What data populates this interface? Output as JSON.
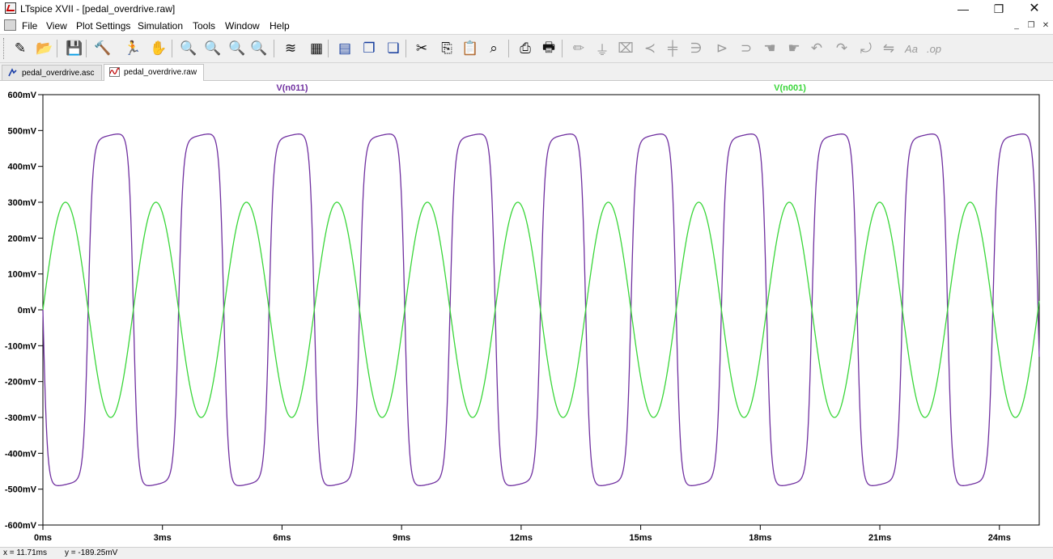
{
  "window": {
    "title": "LTspice XVII - [pedal_overdrive.raw]",
    "controls": {
      "minimize": "—",
      "maximize": "❐",
      "close": "✕"
    },
    "mdi_controls": {
      "minimize": "_",
      "restore": "❐",
      "close": "✕"
    }
  },
  "menu": [
    {
      "label": "File"
    },
    {
      "label": "View"
    },
    {
      "label": "Plot Settings"
    },
    {
      "label": "Simulation"
    },
    {
      "label": "Tools"
    },
    {
      "label": "Window"
    },
    {
      "label": "Help"
    }
  ],
  "toolbar": [
    {
      "icon": "new-schematic-icon",
      "glyph": "✎"
    },
    {
      "icon": "open-folder-icon",
      "glyph": "📂"
    },
    {
      "icon": "save-icon",
      "glyph": "💾"
    },
    {
      "icon": "control-panel-icon",
      "glyph": "🔨"
    },
    {
      "icon": "run-icon",
      "glyph": "🏃"
    },
    {
      "icon": "halt-icon",
      "glyph": "✋"
    },
    {
      "icon": "zoom-in-icon",
      "glyph": "🔍"
    },
    {
      "icon": "pan-icon",
      "glyph": "🔍"
    },
    {
      "icon": "zoom-out-icon",
      "glyph": "🔍"
    },
    {
      "icon": "zoom-fit-icon",
      "glyph": "🔍"
    },
    {
      "icon": "autorange-icon",
      "glyph": "≋"
    },
    {
      "icon": "pick-visible-icon",
      "glyph": "▦"
    },
    {
      "icon": "tile-horizontal-icon",
      "glyph": "▤"
    },
    {
      "icon": "cascade-icon",
      "glyph": "❐"
    },
    {
      "icon": "tile-vertical-icon",
      "glyph": "❏"
    },
    {
      "icon": "cut-icon",
      "glyph": "✂"
    },
    {
      "icon": "copy-icon",
      "glyph": "⎘"
    },
    {
      "icon": "paste-icon",
      "glyph": "📋"
    },
    {
      "icon": "find-icon",
      "glyph": "⌕"
    },
    {
      "icon": "print-preview-icon",
      "glyph": "⎙"
    },
    {
      "icon": "print-icon",
      "glyph": "🖶"
    },
    {
      "icon": "draw-wire-icon",
      "glyph": "✏"
    },
    {
      "icon": "ground-icon",
      "glyph": "⏚"
    },
    {
      "icon": "label-net-icon",
      "glyph": "⌧"
    },
    {
      "icon": "resistor-icon",
      "glyph": "≺"
    },
    {
      "icon": "capacitor-icon",
      "glyph": "╪"
    },
    {
      "icon": "inductor-icon",
      "glyph": "∋"
    },
    {
      "icon": "diode-icon",
      "glyph": "⊳"
    },
    {
      "icon": "component-icon",
      "glyph": "⊃"
    },
    {
      "icon": "move-icon",
      "glyph": "☚"
    },
    {
      "icon": "drag-icon",
      "glyph": "☛"
    },
    {
      "icon": "undo-icon",
      "glyph": "↶"
    },
    {
      "icon": "redo-icon",
      "glyph": "↷"
    },
    {
      "icon": "rotate-icon",
      "glyph": "⤾"
    },
    {
      "icon": "mirror-icon",
      "glyph": "⇋"
    },
    {
      "icon": "text-icon",
      "glyph": "Aa"
    },
    {
      "icon": "spice-directive-icon",
      "glyph": ".op"
    }
  ],
  "tabs": [
    {
      "label": "pedal_overdrive.asc",
      "active": false
    },
    {
      "label": "pedal_overdrive.raw",
      "active": true
    }
  ],
  "chart_data": {
    "type": "line",
    "xlabel": "",
    "ylabel": "",
    "xlim": [
      0,
      25
    ],
    "ylim": [
      -600,
      600
    ],
    "x_ticks": [
      "0ms",
      "3ms",
      "6ms",
      "9ms",
      "12ms",
      "15ms",
      "18ms",
      "21ms",
      "24ms"
    ],
    "y_ticks": [
      "600mV",
      "500mV",
      "400mV",
      "300mV",
      "200mV",
      "100mV",
      "0mV",
      "-100mV",
      "-200mV",
      "-300mV",
      "-400mV",
      "-500mV",
      "-600mV"
    ],
    "series": [
      {
        "name": "V(n011)",
        "color": "#7030a0",
        "description": "clipped square-like output, amplitude ~ ±500mV, period ~2.27ms",
        "amplitude_mv": 505,
        "period_ms": 2.27
      },
      {
        "name": "V(n001)",
        "color": "#39d639",
        "description": "sine input, amplitude 300mV, period ~2.27ms",
        "amplitude_mv": 300,
        "period_ms": 2.27
      }
    ]
  },
  "status": {
    "x_readout": "x = 11.71ms",
    "y_readout": "y = -189.25mV"
  }
}
